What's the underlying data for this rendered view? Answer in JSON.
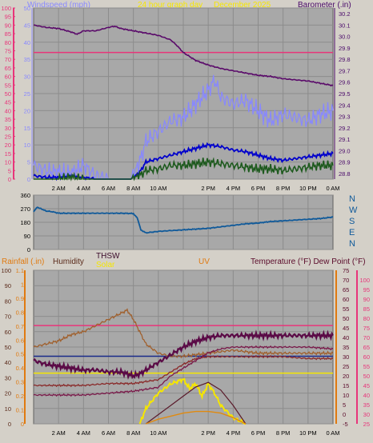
{
  "header": {
    "left_label": "Windspeed (mph)",
    "center_label": "24 hour graph day",
    "date_label": "December 2025",
    "right_label": "Barometer (.in)"
  },
  "lower_header": {
    "rainfall": "Rainfall (.in)",
    "humidity": "Humidity",
    "thsw": "THSW",
    "solar": "Solar",
    "uv": "UV",
    "temperature": "Temperature (°F) Dew Point (°F)"
  },
  "compass": [
    "N",
    "W",
    "S",
    "E",
    "N"
  ],
  "colors": {
    "wind": "#8888ff",
    "wind_avg": "#0000cc",
    "wind_dir": "#105a9a",
    "gust_low": "#1e5a1e",
    "barometer": "#5a0a6a",
    "pink_line": "#e8357a",
    "temperature": "#5a0a46",
    "humidity": "#a0522d",
    "solar": "#f5e600",
    "uv": "#e08a10",
    "plot_bg": "#a8a8a8"
  },
  "chart_data": [
    {
      "type": "line",
      "title": "",
      "x_ticks": [
        "2 AM",
        "4 AM",
        "6 AM",
        "8 AM",
        "10 AM",
        "2 PM",
        "4 PM",
        "6 PM",
        "8 PM",
        "10 PM",
        "0 AM"
      ],
      "left_axis": {
        "label": "Windspeed (mph)",
        "ticks": [
          0,
          5,
          10,
          15,
          20,
          25,
          30,
          35,
          40,
          45,
          50,
          55,
          60,
          65,
          70,
          75,
          80,
          85,
          90,
          95,
          100
        ],
        "range": [
          0,
          100
        ]
      },
      "mid_axis": {
        "ticks": [
          0,
          5,
          10,
          15,
          20,
          25,
          30,
          35,
          40,
          45,
          50
        ],
        "range": [
          0,
          50
        ]
      },
      "right_axis": {
        "label": "Barometer (.in)",
        "ticks": [
          28.8,
          28.9,
          29.0,
          29.1,
          29.2,
          29.3,
          29.4,
          29.5,
          29.6,
          29.7,
          29.8,
          29.9,
          30.0,
          30.1,
          30.2
        ],
        "range": [
          28.75,
          30.25
        ]
      },
      "series": [
        {
          "name": "Barometer",
          "axis": "right",
          "x": [
            0,
            1,
            2,
            3,
            3.5,
            4,
            5,
            6,
            6.5,
            7,
            8,
            9,
            10,
            11,
            11.5,
            12,
            13,
            14,
            15,
            16,
            17,
            18,
            19,
            20,
            21,
            22,
            23,
            24
          ],
          "y": [
            30.1,
            30.08,
            30.07,
            30.04,
            30.02,
            30.05,
            30.05,
            30.08,
            30.09,
            30.07,
            30.05,
            30.03,
            30.01,
            29.97,
            29.92,
            29.86,
            29.79,
            29.75,
            29.72,
            29.7,
            29.68,
            29.66,
            29.65,
            29.63,
            29.62,
            29.61,
            29.59,
            29.57
          ]
        },
        {
          "name": "Pink reference",
          "axis": "left",
          "x": [
            0,
            24
          ],
          "y": [
            74,
            74
          ]
        },
        {
          "name": "Wind gust",
          "axis": "left",
          "x": [
            0,
            1,
            2,
            3,
            4,
            5,
            6,
            7,
            7.8,
            8.5,
            9,
            10,
            11,
            12,
            13,
            14,
            14.5,
            15,
            16,
            17,
            18,
            19,
            20,
            21,
            22,
            23,
            24
          ],
          "y": [
            8,
            5,
            4,
            3,
            8,
            2,
            0,
            0,
            0,
            10,
            22,
            28,
            34,
            36,
            44,
            52,
            58,
            48,
            44,
            46,
            40,
            34,
            38,
            36,
            34,
            38,
            40
          ]
        },
        {
          "name": "Wind average",
          "axis": "left",
          "x": [
            0,
            1,
            2,
            3,
            4,
            5,
            6,
            7,
            7.8,
            8.5,
            9,
            10,
            11,
            12,
            13,
            14,
            15,
            16,
            17,
            18,
            19,
            20,
            21,
            22,
            23,
            24
          ],
          "y": [
            2,
            1,
            1,
            2,
            1,
            0,
            0,
            0,
            0,
            4,
            10,
            12,
            14,
            16,
            18,
            20,
            19,
            17,
            16,
            14,
            12,
            11,
            12,
            13,
            14,
            15
          ]
        },
        {
          "name": "Wind low",
          "axis": "left",
          "x": [
            0,
            1,
            2,
            3,
            4,
            5,
            6,
            7,
            7.8,
            8.5,
            9,
            10,
            11,
            12,
            13,
            14,
            15,
            16,
            17,
            18,
            19,
            20,
            21,
            22,
            23,
            24
          ],
          "y": [
            0,
            0,
            0,
            1,
            0,
            0,
            0,
            0,
            0,
            2,
            5,
            6,
            8,
            8,
            9,
            10,
            9,
            8,
            7,
            6,
            6,
            5,
            6,
            7,
            8,
            8
          ]
        }
      ]
    },
    {
      "type": "line",
      "title": "",
      "y_axis": {
        "ticks": [
          0,
          90,
          180,
          270,
          360
        ],
        "range": [
          0,
          360
        ]
      },
      "series": [
        {
          "name": "Wind direction",
          "x": [
            0,
            0.3,
            1,
            1.5,
            2,
            3,
            4,
            5,
            6,
            7,
            8,
            8.3,
            8.6,
            9,
            10,
            11,
            12,
            13,
            14,
            15,
            16,
            17,
            18,
            19,
            20,
            21,
            22,
            23,
            24
          ],
          "y": [
            250,
            280,
            255,
            250,
            240,
            240,
            240,
            240,
            240,
            240,
            238,
            210,
            130,
            110,
            120,
            125,
            130,
            135,
            140,
            150,
            160,
            170,
            175,
            185,
            190,
            195,
            200,
            205,
            215
          ]
        }
      ]
    },
    {
      "type": "line",
      "title": "",
      "axes": {
        "humidity_ticks": [
          0,
          10,
          20,
          30,
          40,
          50,
          60,
          70,
          80,
          90,
          100
        ],
        "rain_ticks": [
          0,
          0.1,
          0.2,
          0.3,
          0.4,
          0.5,
          0.6,
          0.7,
          0.8,
          0.9,
          1,
          1.1
        ],
        "uv_ticks": [
          0,
          1,
          2,
          3,
          4,
          5,
          6,
          7,
          8,
          9,
          10
        ],
        "temp_ticks": [
          -5,
          0,
          5,
          10,
          15,
          20,
          25,
          30,
          35,
          40,
          45,
          50,
          55,
          60,
          65,
          70,
          75
        ],
        "pink_ticks": [
          25,
          30,
          35,
          40,
          45,
          50,
          55,
          60,
          65,
          70,
          75,
          80,
          85,
          90,
          95,
          100
        ]
      },
      "series": [
        {
          "name": "Humidity",
          "axis": "humidity",
          "x": [
            0,
            1,
            2,
            3,
            4,
            5,
            6,
            7,
            7.5,
            8,
            8.5,
            9,
            10,
            11,
            12,
            13,
            14,
            15,
            16,
            17,
            18,
            19,
            20,
            21,
            22,
            23,
            24
          ],
          "y": [
            50,
            52,
            54,
            58,
            60,
            64,
            68,
            72,
            74,
            68,
            60,
            52,
            46,
            44,
            44,
            45,
            46,
            47,
            48,
            47,
            46,
            46,
            46,
            46,
            46,
            46,
            46
          ]
        },
        {
          "name": "Temperature",
          "axis": "temp",
          "x": [
            0,
            1,
            2,
            3,
            4,
            5,
            6,
            7,
            8,
            8.5,
            9,
            10,
            11,
            12,
            13,
            14,
            15,
            16,
            17,
            18,
            19,
            20,
            21,
            22,
            23,
            24
          ],
          "y": [
            28,
            26,
            25,
            24,
            23,
            23,
            22,
            22,
            20,
            21,
            23,
            27,
            31,
            35,
            38,
            40,
            41,
            41,
            41,
            41,
            41,
            41,
            41,
            41,
            41,
            41
          ]
        },
        {
          "name": "Dew point",
          "axis": "temp",
          "x": [
            0,
            2,
            4,
            6,
            8,
            9,
            10,
            11,
            12,
            13,
            14,
            15,
            16,
            18,
            20,
            22,
            24
          ],
          "y": [
            15,
            15,
            15,
            16,
            16,
            17,
            18,
            22,
            26,
            29,
            30,
            30,
            30,
            30,
            30,
            29,
            29
          ]
        },
        {
          "name": "THSW",
          "axis": "temp",
          "x": [
            0,
            2,
            4,
            6,
            8,
            9,
            10,
            11,
            12,
            13,
            14,
            15,
            16,
            18,
            20,
            22,
            24
          ],
          "y": [
            10,
            10,
            10,
            11,
            12,
            13,
            14,
            20,
            24,
            28,
            32,
            34,
            35,
            35,
            35,
            35,
            34
          ]
        },
        {
          "name": "Pink reference",
          "axis": "humidity",
          "x": [
            0,
            24
          ],
          "y": [
            64,
            64
          ]
        },
        {
          "name": "Blue reference",
          "axis": "humidity",
          "x": [
            0,
            24
          ],
          "y": [
            44,
            44
          ]
        },
        {
          "name": "Yellow reference",
          "axis": "humidity",
          "x": [
            0,
            24
          ],
          "y": [
            33,
            33
          ]
        },
        {
          "name": "Solar",
          "axis": "humidity",
          "x": [
            8.5,
            9,
            10,
            11,
            12,
            12.5,
            13,
            13.5,
            14,
            14.5,
            15,
            16,
            17
          ],
          "y": [
            0,
            10,
            20,
            26,
            29,
            23,
            26,
            18,
            26,
            20,
            12,
            4,
            0
          ]
        },
        {
          "name": "UV",
          "axis": "humidity",
          "x": [
            9,
            10,
            11,
            12,
            13,
            14,
            15,
            16,
            17
          ],
          "y": [
            0,
            6,
            12,
            18,
            24,
            27,
            22,
            12,
            0
          ]
        },
        {
          "name": "Solar max",
          "axis": "humidity",
          "x": [
            9,
            10,
            11,
            12,
            13,
            14,
            15,
            16,
            17
          ],
          "y": [
            0,
            3,
            5,
            7,
            8,
            8,
            7,
            4,
            0
          ]
        }
      ]
    }
  ]
}
